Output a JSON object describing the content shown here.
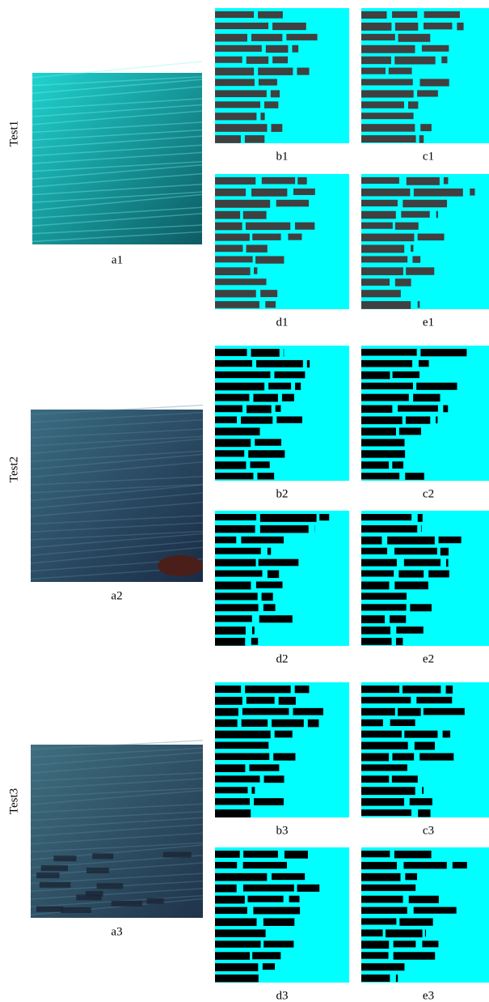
{
  "rows": [
    {
      "label": "Test1",
      "captions": [
        "a1",
        "b1",
        "c1",
        "d1",
        "e1"
      ]
    },
    {
      "label": "Test2",
      "captions": [
        "a2",
        "b2",
        "c2",
        "d2",
        "e2"
      ]
    },
    {
      "label": "Test3",
      "captions": [
        "a3",
        "b3",
        "c3",
        "d3",
        "e3"
      ]
    }
  ]
}
